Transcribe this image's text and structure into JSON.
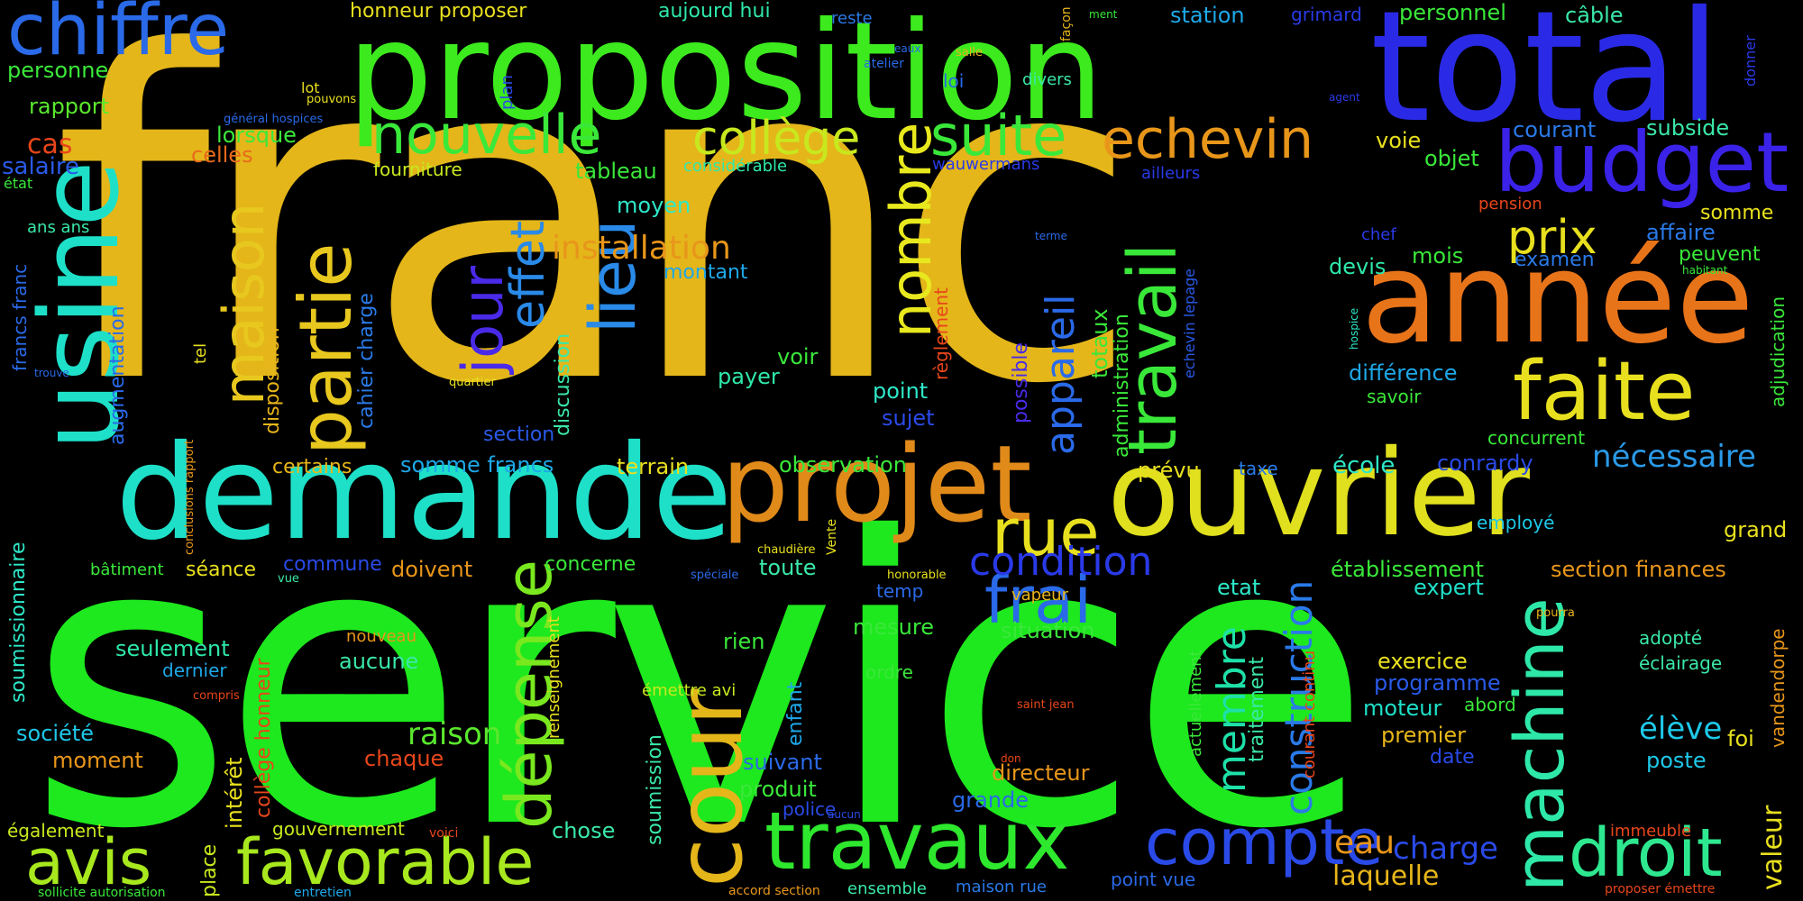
{
  "word_cloud": {
    "background": "#000000",
    "words": [
      {
        "text": "franc",
        "color": "#e4b61a"
      },
      {
        "text": "service",
        "color": "#1ee81e"
      },
      {
        "text": "proposition",
        "color": "#3cea1e"
      },
      {
        "text": "total",
        "color": "#2a2ae6"
      },
      {
        "text": "année",
        "color": "#e8741a"
      },
      {
        "text": "budget",
        "color": "#3a22e8"
      },
      {
        "text": "demande",
        "color": "#1ee0c8"
      },
      {
        "text": "projet",
        "color": "#e08a1a"
      },
      {
        "text": "ouvrier",
        "color": "#e0e01e"
      },
      {
        "text": "usine",
        "color": "#1ee0c8"
      },
      {
        "text": "chiffre",
        "color": "#2a6ae8"
      },
      {
        "text": "faite",
        "color": "#e8e01e"
      },
      {
        "text": "travaux",
        "color": "#2ee82e"
      },
      {
        "text": "favorable",
        "color": "#a8e81e"
      },
      {
        "text": "avis",
        "color": "#a8e81e"
      },
      {
        "text": "compte",
        "color": "#2a4ae8"
      },
      {
        "text": "droit",
        "color": "#2ee890"
      },
      {
        "text": "machine",
        "color": "#2ee8a8"
      },
      {
        "text": "cour",
        "color": "#e4b61a"
      },
      {
        "text": "partie",
        "color": "#e8c81e"
      },
      {
        "text": "travail",
        "color": "#3ae83a"
      },
      {
        "text": "dépense",
        "color": "#7ae81e"
      },
      {
        "text": "nouvelle",
        "color": "#3ae83a"
      },
      {
        "text": "echevin",
        "color": "#e8961a"
      },
      {
        "text": "suite",
        "color": "#3ae83a"
      },
      {
        "text": "collège",
        "color": "#c8e81e"
      },
      {
        "text": "maison",
        "color": "#e8c81e"
      },
      {
        "text": "nombre",
        "color": "#e8e81e"
      },
      {
        "text": "lieu",
        "color": "#2a8ae8"
      },
      {
        "text": "jour",
        "color": "#4a2ae8"
      },
      {
        "text": "effet",
        "color": "#2a8ae8"
      },
      {
        "text": "rue",
        "color": "#e8e01e"
      },
      {
        "text": "frai",
        "color": "#2a6ae8"
      },
      {
        "text": "condition",
        "color": "#2a3ae8"
      },
      {
        "text": "prix",
        "color": "#e8e01e"
      },
      {
        "text": "installation",
        "color": "#e8961a"
      },
      {
        "text": "appareil",
        "color": "#2a6ae8"
      },
      {
        "text": "membre",
        "color": "#1ee0a8"
      },
      {
        "text": "construction",
        "color": "#2a7ae8"
      },
      {
        "text": "nécessaire",
        "color": "#2a9ae8"
      },
      {
        "text": "élève",
        "color": "#1ec8e8"
      },
      {
        "text": "raison",
        "color": "#5ae82e"
      },
      {
        "text": "charge",
        "color": "#2a4ae8"
      },
      {
        "text": "eau",
        "color": "#e8961a"
      },
      {
        "text": "laquelle",
        "color": "#e8b61a"
      },
      {
        "text": "valeur",
        "color": "#e8e01e"
      },
      {
        "text": "grand",
        "color": "#e8e01e"
      },
      {
        "text": "personne",
        "color": "#3ae83a"
      },
      {
        "text": "rapport",
        "color": "#5ae82e"
      },
      {
        "text": "cas",
        "color": "#e8461a"
      },
      {
        "text": "salaire",
        "color": "#2a5ae8"
      },
      {
        "text": "lorsque",
        "color": "#3ae83a"
      },
      {
        "text": "celles",
        "color": "#e86a1a"
      },
      {
        "text": "honneur proposer",
        "color": "#e8e01e"
      },
      {
        "text": "aujourd hui",
        "color": "#2ee8a8"
      },
      {
        "text": "station",
        "color": "#1ea8e8"
      },
      {
        "text": "grimard",
        "color": "#2a3ae8"
      },
      {
        "text": "personnel",
        "color": "#3ae83a"
      },
      {
        "text": "câble",
        "color": "#3ae8a8"
      },
      {
        "text": "reste",
        "color": "#2a7ae8"
      },
      {
        "text": "subside",
        "color": "#3ae8a8"
      },
      {
        "text": "courant",
        "color": "#2a7ae8"
      },
      {
        "text": "somme",
        "color": "#e8e01e"
      },
      {
        "text": "affaire",
        "color": "#2a7ae8"
      },
      {
        "text": "peuvent",
        "color": "#3ae83a"
      },
      {
        "text": "examen",
        "color": "#2a7ae8"
      },
      {
        "text": "mois",
        "color": "#3ae83a"
      },
      {
        "text": "devis",
        "color": "#2ee8a8"
      },
      {
        "text": "chef",
        "color": "#2a3ae8"
      },
      {
        "text": "pension",
        "color": "#e8461a"
      },
      {
        "text": "voie",
        "color": "#e8e01e"
      },
      {
        "text": "objet",
        "color": "#3ae83a"
      },
      {
        "text": "tableau",
        "color": "#3ae83a"
      },
      {
        "text": "fourniture",
        "color": "#c8e81e"
      },
      {
        "text": "considérable",
        "color": "#2ee8a8"
      },
      {
        "text": "wauwermans",
        "color": "#2a3ae8"
      },
      {
        "text": "ailleurs",
        "color": "#2a3ae8"
      },
      {
        "text": "moyen",
        "color": "#2ee8c8"
      },
      {
        "text": "montant",
        "color": "#1ea8e8"
      },
      {
        "text": "différence",
        "color": "#1ea8e8"
      },
      {
        "text": "savoir",
        "color": "#3ae83a"
      },
      {
        "text": "concurrent",
        "color": "#3ae83a"
      },
      {
        "text": "conrardy",
        "color": "#2a4ae8"
      },
      {
        "text": "école",
        "color": "#2ee8c8"
      },
      {
        "text": "prévu",
        "color": "#e8e01e"
      },
      {
        "text": "taxe",
        "color": "#2a7ae8"
      },
      {
        "text": "employé",
        "color": "#1ec8e8"
      },
      {
        "text": "établissement",
        "color": "#3ae83a"
      },
      {
        "text": "section finances",
        "color": "#e8961a"
      },
      {
        "text": "expert",
        "color": "#1ee0c8"
      },
      {
        "text": "etat",
        "color": "#2ee8c8"
      },
      {
        "text": "exercice",
        "color": "#e8e01e"
      },
      {
        "text": "programme",
        "color": "#2a5ae8"
      },
      {
        "text": "moteur",
        "color": "#1ee0c8"
      },
      {
        "text": "abord",
        "color": "#3ae83a"
      },
      {
        "text": "premier",
        "color": "#e8b61a"
      },
      {
        "text": "date",
        "color": "#2a4ae8"
      },
      {
        "text": "adopté",
        "color": "#3ae8a8"
      },
      {
        "text": "éclairage",
        "color": "#3ae8a8"
      },
      {
        "text": "poste",
        "color": "#1ec8e8"
      },
      {
        "text": "foi",
        "color": "#e8e01e"
      },
      {
        "text": "immeuble",
        "color": "#e8461a"
      },
      {
        "text": "proposer émettre",
        "color": "#e8461a"
      },
      {
        "text": "point vue",
        "color": "#2a6ae8"
      },
      {
        "text": "maison rue",
        "color": "#2a7ae8"
      },
      {
        "text": "ensemble",
        "color": "#3ae8a8"
      },
      {
        "text": "accord section",
        "color": "#e8961a"
      },
      {
        "text": "entretien",
        "color": "#1ea8e8"
      },
      {
        "text": "sollicite autorisation",
        "color": "#3ae83a"
      },
      {
        "text": "voici",
        "color": "#e8461a"
      },
      {
        "text": "gouvernement",
        "color": "#c8e81e"
      },
      {
        "text": "également",
        "color": "#c8e81e"
      },
      {
        "text": "chose",
        "color": "#3ae8a8"
      },
      {
        "text": "police",
        "color": "#2a4ae8"
      },
      {
        "text": "aucun",
        "color": "#2a4ae8"
      },
      {
        "text": "produit",
        "color": "#3ae83a"
      },
      {
        "text": "suivant",
        "color": "#2a6ae8"
      },
      {
        "text": "grande",
        "color": "#2a6ae8"
      },
      {
        "text": "directeur",
        "color": "#e8961a"
      },
      {
        "text": "don",
        "color": "#e8461a"
      },
      {
        "text": "situation",
        "color": "#3ae83a"
      },
      {
        "text": "mesure",
        "color": "#3ae83a"
      },
      {
        "text": "ordre",
        "color": "#3ae83a"
      },
      {
        "text": "rien",
        "color": "#3ae83a"
      },
      {
        "text": "émettre avi",
        "color": "#c8e81e"
      },
      {
        "text": "vapeur",
        "color": "#e8b61a"
      },
      {
        "text": "temp",
        "color": "#2a6ae8"
      },
      {
        "text": "honorable",
        "color": "#e8e01e"
      },
      {
        "text": "toute",
        "color": "#3ae8a8"
      },
      {
        "text": "chaudière",
        "color": "#e8e01e"
      },
      {
        "text": "spéciale",
        "color": "#2a6ae8"
      },
      {
        "text": "concerne",
        "color": "#3ae83a"
      },
      {
        "text": "doivent",
        "color": "#e8961a"
      },
      {
        "text": "commune",
        "color": "#2a4ae8"
      },
      {
        "text": "séance",
        "color": "#e8e01e"
      },
      {
        "text": "bâtiment",
        "color": "#3ae83a"
      },
      {
        "text": "seulement",
        "color": "#2ee8a8"
      },
      {
        "text": "dernier",
        "color": "#1ea8e8"
      },
      {
        "text": "aucune",
        "color": "#3ae8a8"
      },
      {
        "text": "nouveau",
        "color": "#e8961a"
      },
      {
        "text": "compris",
        "color": "#e8461a"
      },
      {
        "text": "société",
        "color": "#1ec8e8"
      },
      {
        "text": "moment",
        "color": "#e8961a"
      },
      {
        "text": "chaque",
        "color": "#e8461a"
      },
      {
        "text": "terrain",
        "color": "#e8e01e"
      },
      {
        "text": "observation",
        "color": "#3ae83a"
      },
      {
        "text": "somme francs",
        "color": "#1ea8e8"
      },
      {
        "text": "certains",
        "color": "#e8b61a"
      },
      {
        "text": "section",
        "color": "#2a5ae8"
      },
      {
        "text": "sujet",
        "color": "#2a4ae8"
      },
      {
        "text": "point",
        "color": "#2ee8c8"
      },
      {
        "text": "payer",
        "color": "#2ee8a8"
      },
      {
        "text": "voir",
        "color": "#3ae83a"
      },
      {
        "text": "ans ans",
        "color": "#3ae8a8"
      },
      {
        "text": "état",
        "color": "#3ae83a"
      },
      {
        "text": "général hospices",
        "color": "#2a6ae8"
      },
      {
        "text": "lot",
        "color": "#e8e01e"
      },
      {
        "text": "pouvons",
        "color": "#e8e01e"
      },
      {
        "text": "plan",
        "color": "#2a4ae8"
      },
      {
        "text": "façon",
        "color": "#e8b61a"
      },
      {
        "text": "eaux",
        "color": "#2a6ae8"
      },
      {
        "text": "atelier",
        "color": "#2a6ae8"
      },
      {
        "text": "salle",
        "color": "#e8b61a"
      },
      {
        "text": "loi",
        "color": "#2a6ae8"
      },
      {
        "text": "divers",
        "color": "#3ae8a8"
      },
      {
        "text": "agent",
        "color": "#2a3ae8"
      },
      {
        "text": "ment",
        "color": "#3ae83a"
      },
      {
        "text": "donner",
        "color": "#2a3ae8"
      },
      {
        "text": "habitant",
        "color": "#3ae83a"
      },
      {
        "text": "terme",
        "color": "#2a6ae8"
      },
      {
        "text": "hospice",
        "color": "#2ee8c8"
      },
      {
        "text": "quartier",
        "color": "#e8e01e"
      },
      {
        "text": "trouve",
        "color": "#2a6ae8"
      },
      {
        "text": "tel",
        "color": "#e8e01e"
      },
      {
        "text": "saint jean",
        "color": "#e8461a"
      },
      {
        "text": "pourra",
        "color": "#e8b61a"
      },
      {
        "text": "vue",
        "color": "#3ae8a8"
      },
      {
        "text": "Vente",
        "color": "#e8e01e"
      },
      {
        "text": "francs franc",
        "color": "#2a6ae8"
      },
      {
        "text": "augmentation",
        "color": "#2a6ae8"
      },
      {
        "text": "soumissionnaire",
        "color": "#2ee8c8"
      },
      {
        "text": "conclusions rapport",
        "color": "#e8961a"
      },
      {
        "text": "disposition",
        "color": "#e8b61a"
      },
      {
        "text": "cahier charge",
        "color": "#2a7ae8"
      },
      {
        "text": "collège honneur",
        "color": "#e8461a"
      },
      {
        "text": "intérêt",
        "color": "#e8e01e"
      },
      {
        "text": "place",
        "color": "#c8e81e"
      },
      {
        "text": "renseignement",
        "color": "#e8e01e"
      },
      {
        "text": "discussion",
        "color": "#3ae8a8"
      },
      {
        "text": "soumission",
        "color": "#3ae8a8"
      },
      {
        "text": "enfant",
        "color": "#1ea8e8"
      },
      {
        "text": "possible",
        "color": "#4a2ae8"
      },
      {
        "text": "règlement",
        "color": "#e8461a"
      },
      {
        "text": "totaux",
        "color": "#3ae83a"
      },
      {
        "text": "administration",
        "color": "#3ae83a"
      },
      {
        "text": "echevin lepage",
        "color": "#2a5ae8"
      },
      {
        "text": "actuellement",
        "color": "#3ae83a"
      },
      {
        "text": "traitement",
        "color": "#3ae8a8"
      },
      {
        "text": "courant continu",
        "color": "#e8461a"
      },
      {
        "text": "vandendorpe",
        "color": "#e8961a"
      },
      {
        "text": "adjudication",
        "color": "#3ae83a"
      }
    ]
  }
}
